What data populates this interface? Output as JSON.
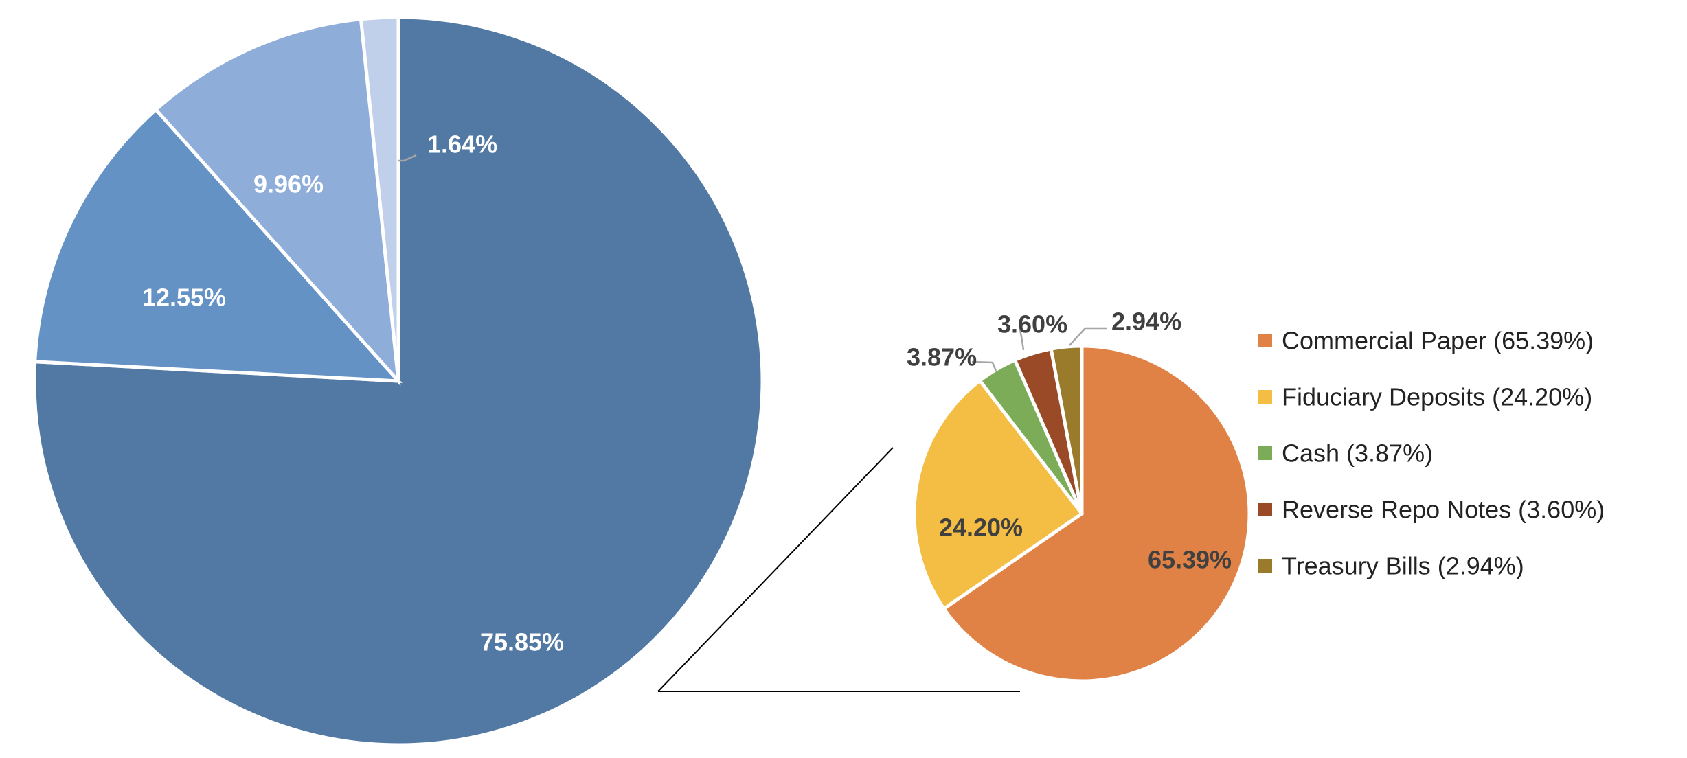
{
  "chart_data": [
    {
      "type": "pie",
      "slices": [
        {
          "label": "75.85%",
          "value": 75.85,
          "color": "#5279a3"
        },
        {
          "label": "12.55%",
          "value": 12.55,
          "color": "#6492c4"
        },
        {
          "label": "9.96%",
          "value": 9.96,
          "color": "#8fadd9"
        },
        {
          "label": "1.64%",
          "value": 1.64,
          "color": "#c0d0ea"
        }
      ]
    },
    {
      "type": "pie",
      "slices": [
        {
          "label": "65.39%",
          "value": 65.39,
          "color": "#e08245",
          "legend": "Commercial Paper (65.39%)"
        },
        {
          "label": "24.20%",
          "value": 24.2,
          "color": "#f4be45",
          "legend": "Fiduciary Deposits (24.20%)"
        },
        {
          "label": "3.87%",
          "value": 3.87,
          "color": "#7dac59",
          "legend": "Cash (3.87%)"
        },
        {
          "label": "3.60%",
          "value": 3.6,
          "color": "#9a4a26",
          "legend": "Reverse Repo Notes (3.60%)"
        },
        {
          "label": "2.94%",
          "value": 2.94,
          "color": "#9a7a2b",
          "legend": "Treasury Bills (2.94%)"
        }
      ],
      "legend_position": "right"
    }
  ]
}
